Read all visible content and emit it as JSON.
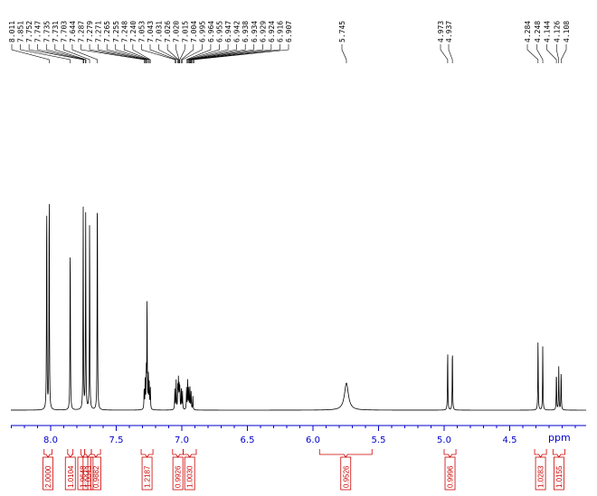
{
  "chart_data": {
    "type": "line",
    "title": "",
    "xlabel": "ppm",
    "ylabel": "",
    "xlim": [
      8.3,
      4.05
    ],
    "x_reversed": true,
    "grid": false,
    "x_ticks": [
      "8.0",
      "7.5",
      "7.0",
      "6.5",
      "6.0",
      "5.5",
      "5.0",
      "4.5"
    ],
    "x_tick_values": [
      8.0,
      7.5,
      7.0,
      6.5,
      6.0,
      5.5,
      5.0,
      4.5
    ],
    "peak_labels": [
      "8.011",
      "7.851",
      "7.752",
      "7.747",
      "7.735",
      "7.731",
      "7.703",
      "7.644",
      "7.287",
      "7.279",
      "7.271",
      "7.265",
      "7.255",
      "7.248",
      "7.240",
      "7.053",
      "7.043",
      "7.031",
      "7.026",
      "7.020",
      "7.015",
      "7.004",
      "6.995",
      "6.964",
      "6.955",
      "6.947",
      "6.942",
      "6.938",
      "6.934",
      "6.929",
      "6.924",
      "6.916",
      "6.907",
      "5.745",
      "4.973",
      "4.937",
      "4.284",
      "4.248",
      "4.144",
      "4.126",
      "4.108"
    ],
    "peaks": [
      {
        "ppm": 8.03,
        "height": 0.61
      },
      {
        "ppm": 8.011,
        "height": 0.64
      },
      {
        "ppm": 7.851,
        "height": 0.49
      },
      {
        "ppm": 7.752,
        "height": 0.57
      },
      {
        "ppm": 7.733,
        "height": 0.55
      },
      {
        "ppm": 7.703,
        "height": 0.54
      },
      {
        "ppm": 7.644,
        "height": 0.66
      },
      {
        "ppm": 7.287,
        "height": 0.06
      },
      {
        "ppm": 7.279,
        "height": 0.08
      },
      {
        "ppm": 7.271,
        "height": 0.1
      },
      {
        "ppm": 7.265,
        "height": 0.31
      },
      {
        "ppm": 7.255,
        "height": 0.09
      },
      {
        "ppm": 7.248,
        "height": 0.07
      },
      {
        "ppm": 7.24,
        "height": 0.06
      },
      {
        "ppm": 7.053,
        "height": 0.06
      },
      {
        "ppm": 7.043,
        "height": 0.08
      },
      {
        "ppm": 7.031,
        "height": 0.06
      },
      {
        "ppm": 7.026,
        "height": 0.08
      },
      {
        "ppm": 7.02,
        "height": 0.07
      },
      {
        "ppm": 7.015,
        "height": 0.06
      },
      {
        "ppm": 7.004,
        "height": 0.06
      },
      {
        "ppm": 6.995,
        "height": 0.05
      },
      {
        "ppm": 6.964,
        "height": 0.06
      },
      {
        "ppm": 6.955,
        "height": 0.08
      },
      {
        "ppm": 6.947,
        "height": 0.06
      },
      {
        "ppm": 6.938,
        "height": 0.06
      },
      {
        "ppm": 6.929,
        "height": 0.05
      },
      {
        "ppm": 6.916,
        "height": 0.04
      },
      {
        "ppm": 5.745,
        "height": 0.075
      },
      {
        "ppm": 4.973,
        "height": 0.17
      },
      {
        "ppm": 4.937,
        "height": 0.18
      },
      {
        "ppm": 4.284,
        "height": 0.2
      },
      {
        "ppm": 4.248,
        "height": 0.18
      },
      {
        "ppm": 4.144,
        "height": 0.11
      },
      {
        "ppm": 4.126,
        "height": 0.12
      },
      {
        "ppm": 4.108,
        "height": 0.11
      }
    ],
    "integrals": [
      {
        "from": 8.05,
        "to": 7.99,
        "value": "2.0000"
      },
      {
        "from": 7.87,
        "to": 7.83,
        "value": "1.0104"
      },
      {
        "from": 7.77,
        "to": 7.74,
        "value": "1.9648"
      },
      {
        "from": 7.74,
        "to": 7.69,
        "value": "1.0043"
      },
      {
        "from": 7.69,
        "to": 7.62,
        "value": "0.9882"
      },
      {
        "from": 7.31,
        "to": 7.22,
        "value": "1.2187"
      },
      {
        "from": 7.07,
        "to": 6.99,
        "value": "0.9926"
      },
      {
        "from": 6.99,
        "to": 6.89,
        "value": "1.0030"
      },
      {
        "from": 5.95,
        "to": 5.55,
        "value": "0.9526"
      },
      {
        "from": 5.0,
        "to": 4.91,
        "value": "0.9996"
      },
      {
        "from": 4.31,
        "to": 4.22,
        "value": "1.0283"
      },
      {
        "from": 4.17,
        "to": 4.08,
        "value": "1.0155"
      }
    ]
  },
  "colors": {
    "axis": "#0000cc",
    "spectrum": "#000000",
    "integral": "#cc0000"
  }
}
